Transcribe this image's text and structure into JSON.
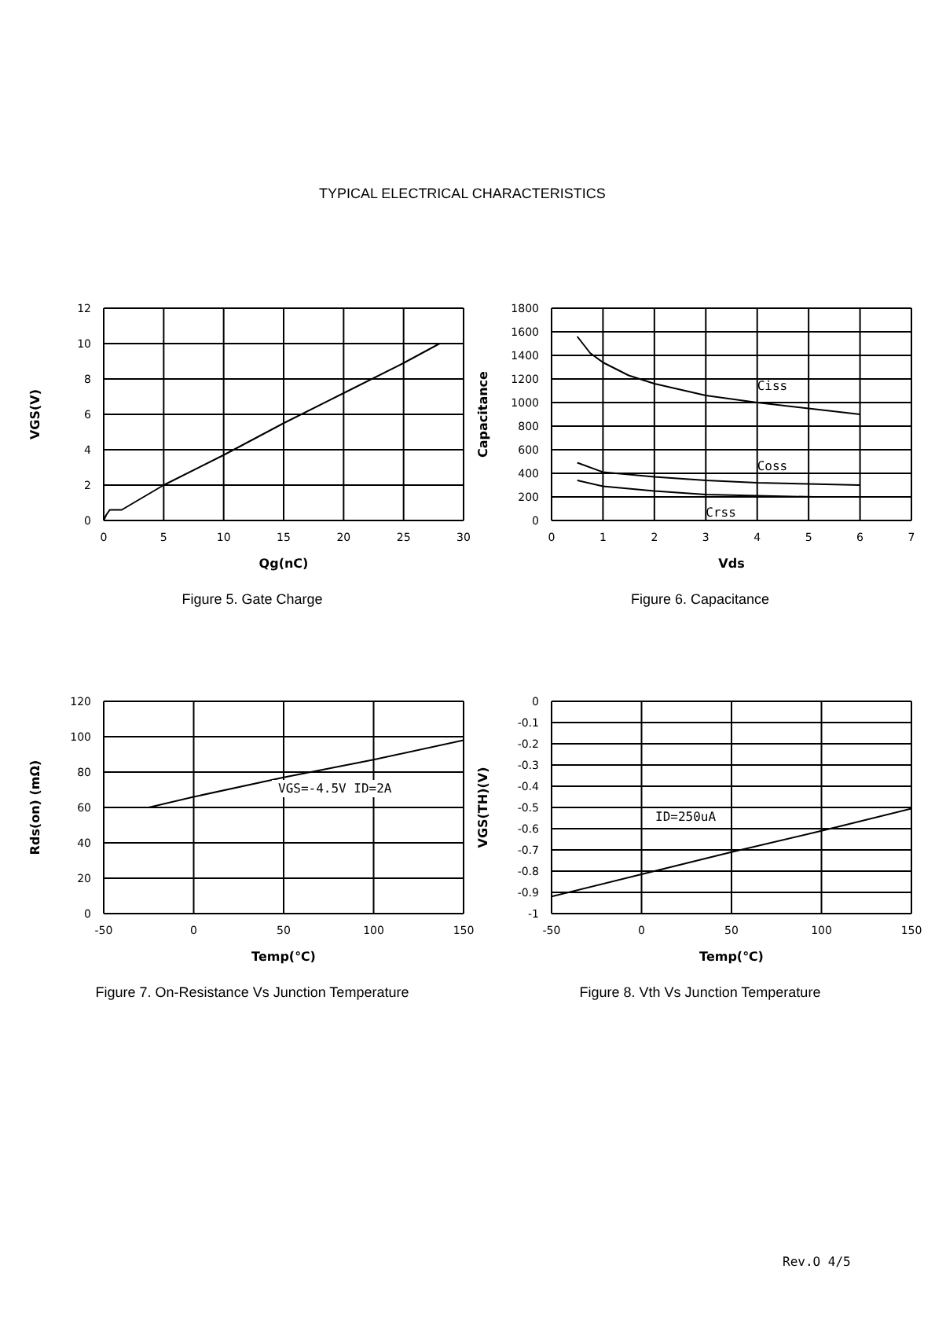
{
  "chart_data": [
    {
      "type": "line",
      "title": "Figure 5. Gate Charge",
      "xlabel": "Qg(nC)",
      "ylabel": "VGS(V)",
      "xlim": [
        0,
        30
      ],
      "xticks": [
        0,
        5,
        10,
        15,
        20,
        25,
        30
      ],
      "ylim": [
        0,
        12
      ],
      "yticks": [
        0,
        2,
        4,
        6,
        8,
        10,
        12
      ],
      "grid": true,
      "legend": false,
      "annotations": [
        "TYPICAL ELECTRICAL CHARACTERISTICS"
      ],
      "series": [
        {
          "color": "#000000",
          "x": [
            0,
            0.2,
            0.5,
            1.5,
            5,
            10,
            15,
            20,
            25,
            28
          ],
          "values": [
            0,
            0.3,
            0.6,
            0.6,
            2,
            3.7,
            5.5,
            7.2,
            8.9,
            10
          ]
        }
      ]
    },
    {
      "type": "line",
      "title": "Figure 6. Capacitance",
      "xlabel": "Vds",
      "ylabel": "Capacitance",
      "xlim": [
        0,
        7
      ],
      "xticks": [
        0,
        1,
        2,
        3,
        4,
        5,
        6,
        7
      ],
      "ylim": [
        0,
        1800
      ],
      "yticks": [
        0,
        200,
        400,
        600,
        800,
        1000,
        1200,
        1400,
        1600,
        1800
      ],
      "grid": true,
      "legend": false,
      "series": [
        {
          "name": "Ciss",
          "color": "#000000",
          "x": [
            0.5,
            0.75,
            1,
            1.5,
            2,
            3,
            4,
            5,
            6
          ],
          "values": [
            1560,
            1420,
            1340,
            1230,
            1160,
            1060,
            1000,
            950,
            900
          ]
        },
        {
          "name": "Coss",
          "color": "#000000",
          "x": [
            0.5,
            1,
            2,
            3,
            4,
            5,
            6
          ],
          "values": [
            490,
            410,
            370,
            340,
            320,
            310,
            300
          ]
        },
        {
          "name": "Crss",
          "color": "#000000",
          "x": [
            0.5,
            1,
            2,
            3,
            4,
            5.1
          ],
          "values": [
            340,
            290,
            250,
            220,
            210,
            200
          ]
        }
      ]
    },
    {
      "type": "line",
      "title": "Figure 7. On-Resistance Vs Junction Temperature",
      "xlabel": "Temp(℃)",
      "ylabel": "Rds(on) (mΩ)",
      "xlim": [
        -50,
        150
      ],
      "xticks": [
        -50,
        0,
        50,
        100,
        150
      ],
      "ylim": [
        0,
        120
      ],
      "yticks": [
        0,
        20,
        40,
        60,
        80,
        100,
        120
      ],
      "grid": true,
      "legend": false,
      "annotations": [
        "VGS=-4.5V ID=2A"
      ],
      "series": [
        {
          "color": "#000000",
          "x": [
            -25,
            0,
            50,
            100,
            150
          ],
          "values": [
            60,
            66,
            77,
            87,
            98
          ]
        }
      ]
    },
    {
      "type": "line",
      "title": "Figure 8. Vth Vs Junction Temperature",
      "xlabel": "Temp(℃)",
      "ylabel": "VGS(TH)(V)",
      "xlim": [
        -50,
        150
      ],
      "xticks": [
        -50,
        0,
        50,
        100,
        150
      ],
      "ylim": [
        -1,
        0
      ],
      "yticks": [
        -1,
        -0.9,
        -0.8,
        -0.7,
        -0.6,
        -0.5,
        -0.4,
        -0.3,
        -0.2,
        -0.1,
        0
      ],
      "grid": true,
      "legend": false,
      "annotations": [
        "ID=250uA",
        "Rev.O 4/5"
      ],
      "series": [
        {
          "color": "#000000",
          "x": [
            -50,
            0,
            50,
            100,
            150
          ],
          "values": [
            -0.92,
            -0.815,
            -0.71,
            -0.61,
            -0.505
          ]
        }
      ]
    }
  ]
}
